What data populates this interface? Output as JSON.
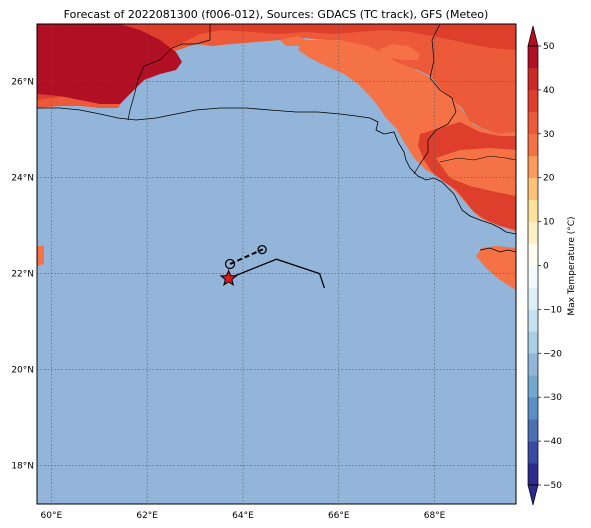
{
  "title": "Forecast of 2022081300 (f006-012), Sources: GDACS (TC track), GFS (Meteo)",
  "map": {
    "lon_range": [
      59.7,
      69.7
    ],
    "lat_range": [
      17.2,
      27.2
    ],
    "x_ticks": [
      {
        "value": 60,
        "label": "60°E"
      },
      {
        "value": 62,
        "label": "62°E"
      },
      {
        "value": 64,
        "label": "64°E"
      },
      {
        "value": 66,
        "label": "66°E"
      },
      {
        "value": 68,
        "label": "68°E"
      }
    ],
    "y_ticks": [
      {
        "value": 18,
        "label": "18°N"
      },
      {
        "value": 20,
        "label": "20°N"
      },
      {
        "value": 22,
        "label": "22°N"
      },
      {
        "value": 24,
        "label": "24°N"
      },
      {
        "value": 26,
        "label": "26°N"
      }
    ],
    "grid": "dotted",
    "ocean_color": "#92b5d9"
  },
  "colorbar": {
    "label": "Max Temperature (°C)",
    "levels": [
      -50,
      -45,
      -40,
      -35,
      -30,
      -25,
      -20,
      -15,
      -10,
      -5,
      0,
      5,
      10,
      15,
      20,
      25,
      30,
      35,
      40,
      45,
      50
    ],
    "colors": [
      "#2c2a8c",
      "#3a4aa0",
      "#4a70b0",
      "#5b8fc4",
      "#74a9cf",
      "#92b5d9",
      "#a9cfe5",
      "#c6e2f0",
      "#def0f7",
      "#f4fbfd",
      "#fffef2",
      "#fff0c8",
      "#fee29a",
      "#fdc17a",
      "#fb9c5c",
      "#f47245",
      "#ec5a3a",
      "#de3e2c",
      "#cc2a26",
      "#b00f24"
    ],
    "ticks": [
      {
        "value": 50,
        "label": "50"
      },
      {
        "value": 40,
        "label": "40"
      },
      {
        "value": 30,
        "label": "30"
      },
      {
        "value": 20,
        "label": "20"
      },
      {
        "value": 10,
        "label": "10"
      },
      {
        "value": 0,
        "label": "0"
      },
      {
        "value": -10,
        "label": "−10"
      },
      {
        "value": -20,
        "label": "−20"
      },
      {
        "value": -30,
        "label": "−30"
      },
      {
        "value": -40,
        "label": "−40"
      },
      {
        "value": -50,
        "label": "−50"
      }
    ]
  },
  "tc_track": {
    "current_position": {
      "lon": 63.7,
      "lat": 21.9
    },
    "forecast_points": [
      {
        "lon": 63.73,
        "lat": 22.2
      },
      {
        "lon": 64.4,
        "lat": 22.5
      }
    ],
    "past_track": [
      {
        "lon": 63.7,
        "lat": 21.9
      },
      {
        "lon": 64.7,
        "lat": 22.3
      },
      {
        "lon": 65.6,
        "lat": 22.0
      },
      {
        "lon": 65.7,
        "lat": 21.7
      }
    ]
  }
}
